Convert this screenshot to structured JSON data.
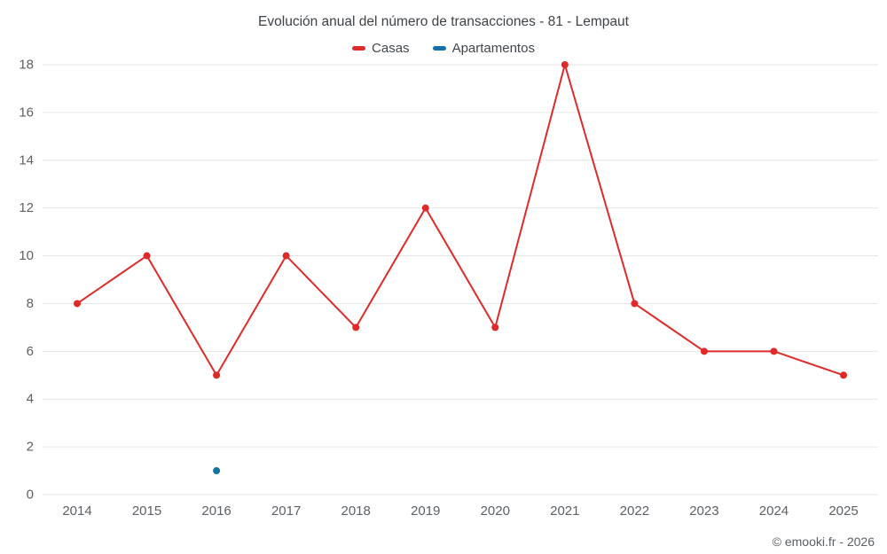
{
  "chart": {
    "title": "Evolución anual del número de transacciones - 81 - Lempaut",
    "footer": "© emooki.fr - 2026"
  },
  "chart_data": {
    "type": "line",
    "title": "Evolución anual del número de transacciones - 81 - Lempaut",
    "categories": [
      "2014",
      "2015",
      "2016",
      "2017",
      "2018",
      "2019",
      "2020",
      "2021",
      "2022",
      "2023",
      "2024",
      "2025"
    ],
    "series": [
      {
        "name": "Casas",
        "color": "#e02a2a",
        "values": [
          8,
          10,
          5,
          10,
          7,
          12,
          7,
          18,
          8,
          6,
          6,
          5
        ]
      },
      {
        "name": "Apartamentos",
        "color": "#1272a8",
        "values": [
          null,
          null,
          1,
          null,
          null,
          null,
          null,
          null,
          null,
          null,
          null,
          null
        ]
      }
    ],
    "xlabel": "",
    "ylabel": "",
    "ylim": [
      0,
      18
    ],
    "yticks": [
      0,
      2,
      4,
      6,
      8,
      10,
      12,
      14,
      16,
      18
    ],
    "grid": true,
    "grid_color": "#e6e6e6",
    "legend_position": "top"
  }
}
